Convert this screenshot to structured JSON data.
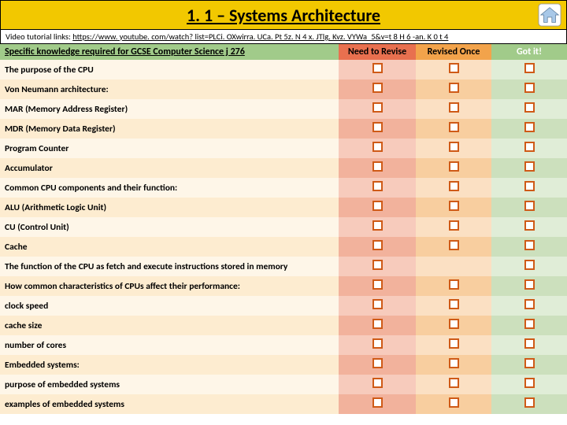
{
  "title": "1. 1 – Systems Architecture",
  "link_label": "Video tutorial links: ",
  "link_url": "https://www. youtube. com/watch? list=PLCi. OXwirra. UCa. Pt 5z. N 4 x. JTlg. Kvz. VYWa_5&v=t 8 H 6 -an. K 0 t 4",
  "headers": {
    "spec": "Specific knowledge required for GCSE Computer Science j 276",
    "need": "Need to Revise",
    "once": "Revised Once",
    "got": "Got it!"
  },
  "rows": [
    {
      "text": "The purpose of the CPU",
      "indent": false,
      "need": true,
      "once": true,
      "got": true
    },
    {
      "text": "Von Neumann architecture:",
      "indent": false,
      "need": true,
      "once": true,
      "got": true
    },
    {
      "text": "MAR (Memory Address Register)",
      "indent": true,
      "need": true,
      "once": true,
      "got": true
    },
    {
      "text": "MDR (Memory Data Register)",
      "indent": true,
      "need": true,
      "once": true,
      "got": true
    },
    {
      "text": "Program Counter",
      "indent": true,
      "need": true,
      "once": true,
      "got": true
    },
    {
      "text": "Accumulator",
      "indent": true,
      "need": true,
      "once": true,
      "got": true
    },
    {
      "text": "Common CPU components and their function:",
      "indent": false,
      "need": true,
      "once": true,
      "got": true
    },
    {
      "text": "ALU (Arithmetic Logic Unit)",
      "indent": true,
      "need": true,
      "once": true,
      "got": true
    },
    {
      "text": "CU (Control Unit)",
      "indent": true,
      "need": true,
      "once": true,
      "got": true
    },
    {
      "text": "Cache",
      "indent": true,
      "need": true,
      "once": true,
      "got": true
    },
    {
      "text": "The function of the CPU as fetch and execute instructions stored in memory",
      "indent": false,
      "need": true,
      "once": false,
      "got": true
    },
    {
      "text": "How common characteristics of CPUs affect their performance:",
      "indent": false,
      "need": true,
      "once": true,
      "got": true
    },
    {
      "text": "clock speed",
      "indent": true,
      "need": true,
      "once": true,
      "got": true
    },
    {
      "text": "cache size",
      "indent": true,
      "need": true,
      "once": true,
      "got": true
    },
    {
      "text": "number of cores",
      "indent": true,
      "need": true,
      "once": true,
      "got": true
    },
    {
      "text": "Embedded systems:",
      "indent": false,
      "need": true,
      "once": true,
      "got": true
    },
    {
      "text": "purpose of embedded systems",
      "indent": true,
      "need": true,
      "once": true,
      "got": true
    },
    {
      "text": "examples of embedded systems",
      "indent": true,
      "need": true,
      "once": true,
      "got": true
    }
  ]
}
